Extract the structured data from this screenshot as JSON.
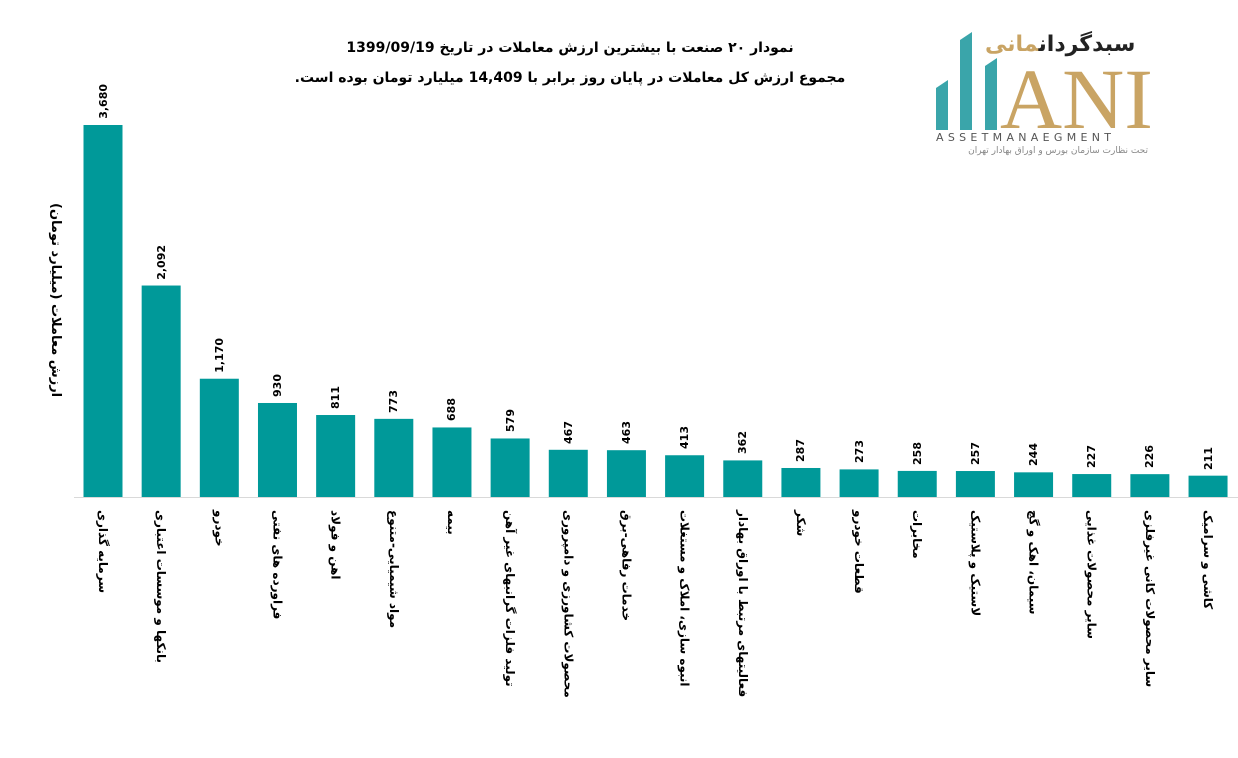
{
  "header": {
    "title_line1": "نمودار  ۲۰ صنعت با بیشترین ارزش معاملات در تاریخ 1399/09/19",
    "title_line2": "مجموع ارزش  کل معاملات در پایان روز برابر با 14,409 میلیارد تومان بوده است."
  },
  "logo": {
    "name_fa_part1": "سبدگردان",
    "name_fa_part2": "مانی",
    "letters": "ANI",
    "name_en": "ASSETMANAEGMENT",
    "subtitle": "تحت نظارت سازمان بورس و اوراق بهادار تهران"
  },
  "colors": {
    "bar": "#009999",
    "logo_teal": "#3aa5aa",
    "logo_gold": "#c9a464"
  },
  "chart_data": {
    "type": "bar",
    "title": "نمودار ۲۰ صنعت با بیشترین ارزش معاملات در تاریخ 1399/09/19",
    "ylabel": "ارزش معاملات (میلیارد تومان)",
    "xlabel": "",
    "ylim": [
      0,
      3680
    ],
    "grid": false,
    "categories": [
      "سرمایه گذاری",
      "بانکها و موسسات اعتباری",
      "خودرو",
      "فراورده های نفتی",
      "اهن و فولاد",
      "مواد شیمیایی-متنوع",
      "بیمه",
      "تولید فلزات گرانبهای غیر آهن",
      "محصولات کشاورزی و دامپروری",
      "خدمات رفاهی-برق",
      "انبوه سازی، املاک و مستغلات",
      "فعالیتهای مرتبط با اوراق بهادار",
      "شکر",
      "قطعات خودرو",
      "مخابرات",
      "لاستیک و پلاستیک",
      "سیمان، اهک و گچ",
      "سایر محصولات غذایی",
      "سایر محصولات کانی غیرفلزی",
      "کاشی و سرامیک"
    ],
    "values": [
      3680,
      2092,
      1170,
      930,
      811,
      773,
      688,
      579,
      467,
      463,
      413,
      362,
      287,
      273,
      258,
      257,
      244,
      227,
      226,
      211
    ],
    "value_labels": [
      "3,680",
      "2,092",
      "1,170",
      "930",
      "811",
      "773",
      "688",
      "579",
      "467",
      "463",
      "413",
      "362",
      "287",
      "273",
      "258",
      "257",
      "244",
      "227",
      "226",
      "211"
    ]
  }
}
